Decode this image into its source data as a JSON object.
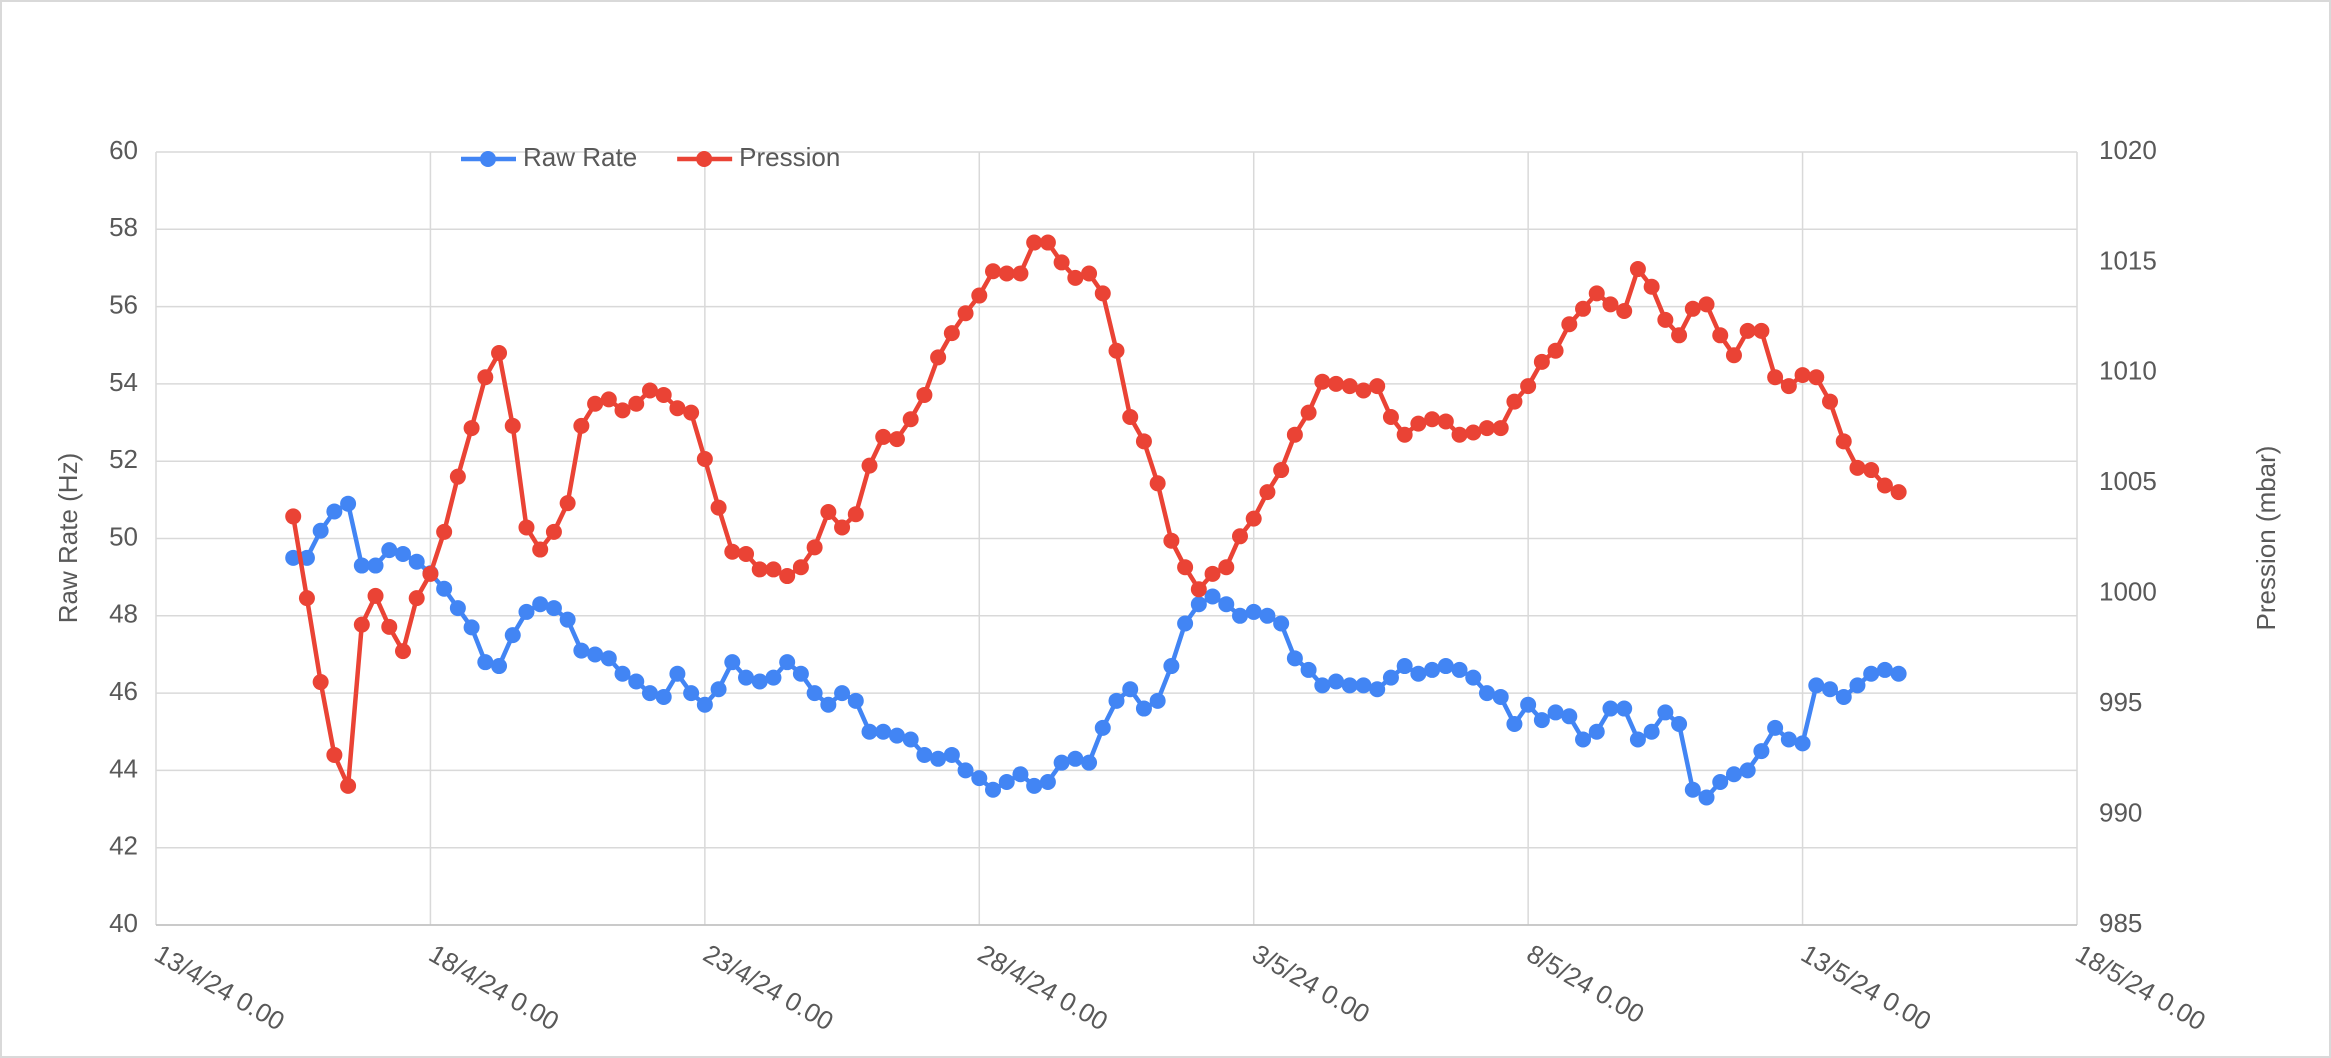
{
  "chart_data": {
    "type": "line",
    "legend": "top",
    "grid": true,
    "ylabel": "Raw Rate (Hz)",
    "y2label": "Pression (mbar)",
    "xlim": [
      "2024-04-13T00:00",
      "2024-05-18T00:00"
    ],
    "xticks": [
      {
        "value": "2024-04-13T00:00",
        "label": "13/4/24 0.00"
      },
      {
        "value": "2024-04-18T00:00",
        "label": "18/4/24 0.00"
      },
      {
        "value": "2024-04-23T00:00",
        "label": "23/4/24 0.00"
      },
      {
        "value": "2024-04-28T00:00",
        "label": "28/4/24 0.00"
      },
      {
        "value": "2024-05-03T00:00",
        "label": "3/5/24 0.00"
      },
      {
        "value": "2024-05-08T00:00",
        "label": "8/5/24 0.00"
      },
      {
        "value": "2024-05-13T00:00",
        "label": "13/5/24 0.00"
      },
      {
        "value": "2024-05-18T00:00",
        "label": "18/5/24 0.00"
      }
    ],
    "ylim": [
      40,
      60
    ],
    "yticks": [
      40,
      42,
      44,
      46,
      48,
      50,
      52,
      54,
      56,
      58,
      60
    ],
    "y2lim": [
      985,
      1020
    ],
    "y2ticks": [
      985,
      990,
      995,
      1000,
      1005,
      1010,
      1015,
      1020
    ],
    "x": [
      "2024-04-15T12:00",
      "2024-04-15T18:00",
      "2024-04-16T00:00",
      "2024-04-16T06:00",
      "2024-04-16T12:00",
      "2024-04-16T18:00",
      "2024-04-17T00:00",
      "2024-04-17T06:00",
      "2024-04-17T12:00",
      "2024-04-17T18:00",
      "2024-04-18T00:00",
      "2024-04-18T06:00",
      "2024-04-18T12:00",
      "2024-04-18T18:00",
      "2024-04-19T00:00",
      "2024-04-19T06:00",
      "2024-04-19T12:00",
      "2024-04-19T18:00",
      "2024-04-20T00:00",
      "2024-04-20T06:00",
      "2024-04-20T12:00",
      "2024-04-20T18:00",
      "2024-04-21T00:00",
      "2024-04-21T06:00",
      "2024-04-21T12:00",
      "2024-04-21T18:00",
      "2024-04-22T00:00",
      "2024-04-22T06:00",
      "2024-04-22T12:00",
      "2024-04-22T18:00",
      "2024-04-23T00:00",
      "2024-04-23T06:00",
      "2024-04-23T12:00",
      "2024-04-23T18:00",
      "2024-04-24T00:00",
      "2024-04-24T06:00",
      "2024-04-24T12:00",
      "2024-04-24T18:00",
      "2024-04-25T00:00",
      "2024-04-25T06:00",
      "2024-04-25T12:00",
      "2024-04-25T18:00",
      "2024-04-26T00:00",
      "2024-04-26T06:00",
      "2024-04-26T12:00",
      "2024-04-26T18:00",
      "2024-04-27T00:00",
      "2024-04-27T06:00",
      "2024-04-27T12:00",
      "2024-04-27T18:00",
      "2024-04-28T00:00",
      "2024-04-28T06:00",
      "2024-04-28T12:00",
      "2024-04-28T18:00",
      "2024-04-29T00:00",
      "2024-04-29T06:00",
      "2024-04-29T12:00",
      "2024-04-29T18:00",
      "2024-04-30T00:00",
      "2024-04-30T06:00",
      "2024-04-30T12:00",
      "2024-04-30T18:00",
      "2024-05-01T00:00",
      "2024-05-01T06:00",
      "2024-05-01T12:00",
      "2024-05-01T18:00",
      "2024-05-02T00:00",
      "2024-05-02T06:00",
      "2024-05-02T12:00",
      "2024-05-02T18:00",
      "2024-05-03T00:00",
      "2024-05-03T06:00",
      "2024-05-03T12:00",
      "2024-05-03T18:00",
      "2024-05-04T00:00",
      "2024-05-04T06:00",
      "2024-05-04T12:00",
      "2024-05-04T18:00",
      "2024-05-05T00:00",
      "2024-05-05T06:00",
      "2024-05-05T12:00",
      "2024-05-05T18:00",
      "2024-05-06T00:00",
      "2024-05-06T06:00",
      "2024-05-06T12:00",
      "2024-05-06T18:00",
      "2024-05-07T00:00",
      "2024-05-07T06:00",
      "2024-05-07T12:00",
      "2024-05-07T18:00",
      "2024-05-08T00:00",
      "2024-05-08T06:00",
      "2024-05-08T12:00",
      "2024-05-08T18:00",
      "2024-05-09T00:00",
      "2024-05-09T06:00",
      "2024-05-09T12:00",
      "2024-05-09T18:00",
      "2024-05-10T00:00",
      "2024-05-10T06:00",
      "2024-05-10T12:00",
      "2024-05-10T18:00",
      "2024-05-11T00:00",
      "2024-05-11T06:00",
      "2024-05-11T12:00",
      "2024-05-11T18:00",
      "2024-05-12T00:00",
      "2024-05-12T06:00",
      "2024-05-12T12:00",
      "2024-05-12T18:00",
      "2024-05-13T00:00",
      "2024-05-13T06:00",
      "2024-05-13T12:00",
      "2024-05-13T18:00",
      "2024-05-14T00:00",
      "2024-05-14T06:00",
      "2024-05-14T12:00",
      "2024-05-14T18:00"
    ],
    "series": [
      {
        "name": "Raw Rate",
        "color": "#4285f4",
        "values": [
          49.5,
          49.5,
          50.2,
          50.7,
          50.9,
          49.3,
          49.3,
          49.7,
          49.6,
          49.4,
          49.1,
          48.7,
          48.2,
          47.7,
          46.8,
          46.7,
          47.5,
          48.1,
          48.3,
          48.2,
          47.9,
          47.1,
          47.0,
          46.9,
          46.5,
          46.3,
          46.0,
          45.9,
          46.5,
          46.0,
          45.7,
          46.1,
          46.8,
          46.4,
          46.3,
          46.4,
          46.8,
          46.5,
          46.0,
          45.7,
          46.0,
          45.8,
          45.0,
          45.0,
          44.9,
          44.8,
          44.4,
          44.3,
          44.4,
          44.0,
          43.8,
          43.5,
          43.7,
          43.9,
          43.6,
          43.7,
          44.2,
          44.3,
          44.2,
          45.1,
          45.8,
          46.1,
          45.6,
          45.8,
          46.7,
          47.8,
          48.3,
          48.5,
          48.3,
          48.0,
          48.1,
          48.0,
          47.8,
          46.9,
          46.6,
          46.2,
          46.3,
          46.2,
          46.2,
          46.1,
          46.4,
          46.7,
          46.5,
          46.6,
          46.7,
          46.6,
          46.4,
          46.0,
          45.9,
          45.2,
          45.7,
          45.3,
          45.5,
          45.4,
          44.8,
          45.0,
          45.6,
          45.6,
          44.8,
          45.0,
          45.5,
          45.2,
          43.5,
          43.3,
          43.7,
          43.9,
          44.0,
          44.5,
          45.1,
          44.8,
          44.7,
          46.2,
          46.1,
          45.9,
          46.2,
          46.5,
          46.6,
          46.5
        ]
      },
      {
        "name": "Pression",
        "color": "#ea4335",
        "axis": "y2",
        "values": [
          1003.5,
          999.8,
          996.0,
          992.7,
          991.3,
          998.6,
          999.9,
          998.5,
          997.4,
          999.8,
          1000.9,
          1002.8,
          1005.3,
          1007.5,
          1009.8,
          1010.9,
          1007.6,
          1003.0,
          1002.0,
          1002.8,
          1004.1,
          1007.6,
          1008.6,
          1008.8,
          1008.3,
          1008.6,
          1009.2,
          1009.0,
          1008.4,
          1008.2,
          1006.1,
          1003.9,
          1001.9,
          1001.8,
          1001.1,
          1001.1,
          1000.8,
          1001.2,
          1002.1,
          1003.7,
          1003.0,
          1003.6,
          1005.8,
          1007.1,
          1007.0,
          1007.9,
          1009.0,
          1010.7,
          1011.8,
          1012.7,
          1013.5,
          1014.6,
          1014.5,
          1014.5,
          1015.9,
          1015.9,
          1015.0,
          1014.3,
          1014.5,
          1013.6,
          1011.0,
          1008.0,
          1006.9,
          1005.0,
          1002.4,
          1001.2,
          1000.2,
          1000.9,
          1001.2,
          1002.6,
          1003.4,
          1004.6,
          1005.6,
          1007.2,
          1008.2,
          1009.6,
          1009.5,
          1009.4,
          1009.2,
          1009.4,
          1008.0,
          1007.2,
          1007.7,
          1007.9,
          1007.8,
          1007.2,
          1007.3,
          1007.5,
          1007.5,
          1008.7,
          1009.4,
          1010.5,
          1011.0,
          1012.2,
          1012.9,
          1013.6,
          1013.1,
          1012.8,
          1014.7,
          1013.9,
          1012.4,
          1011.7,
          1012.9,
          1013.1,
          1011.7,
          1010.8,
          1011.9,
          1011.9,
          1009.8,
          1009.4,
          1009.9,
          1009.8,
          1008.7,
          1006.9,
          1005.7,
          1005.6,
          1004.9,
          1004.6
        ]
      }
    ]
  }
}
